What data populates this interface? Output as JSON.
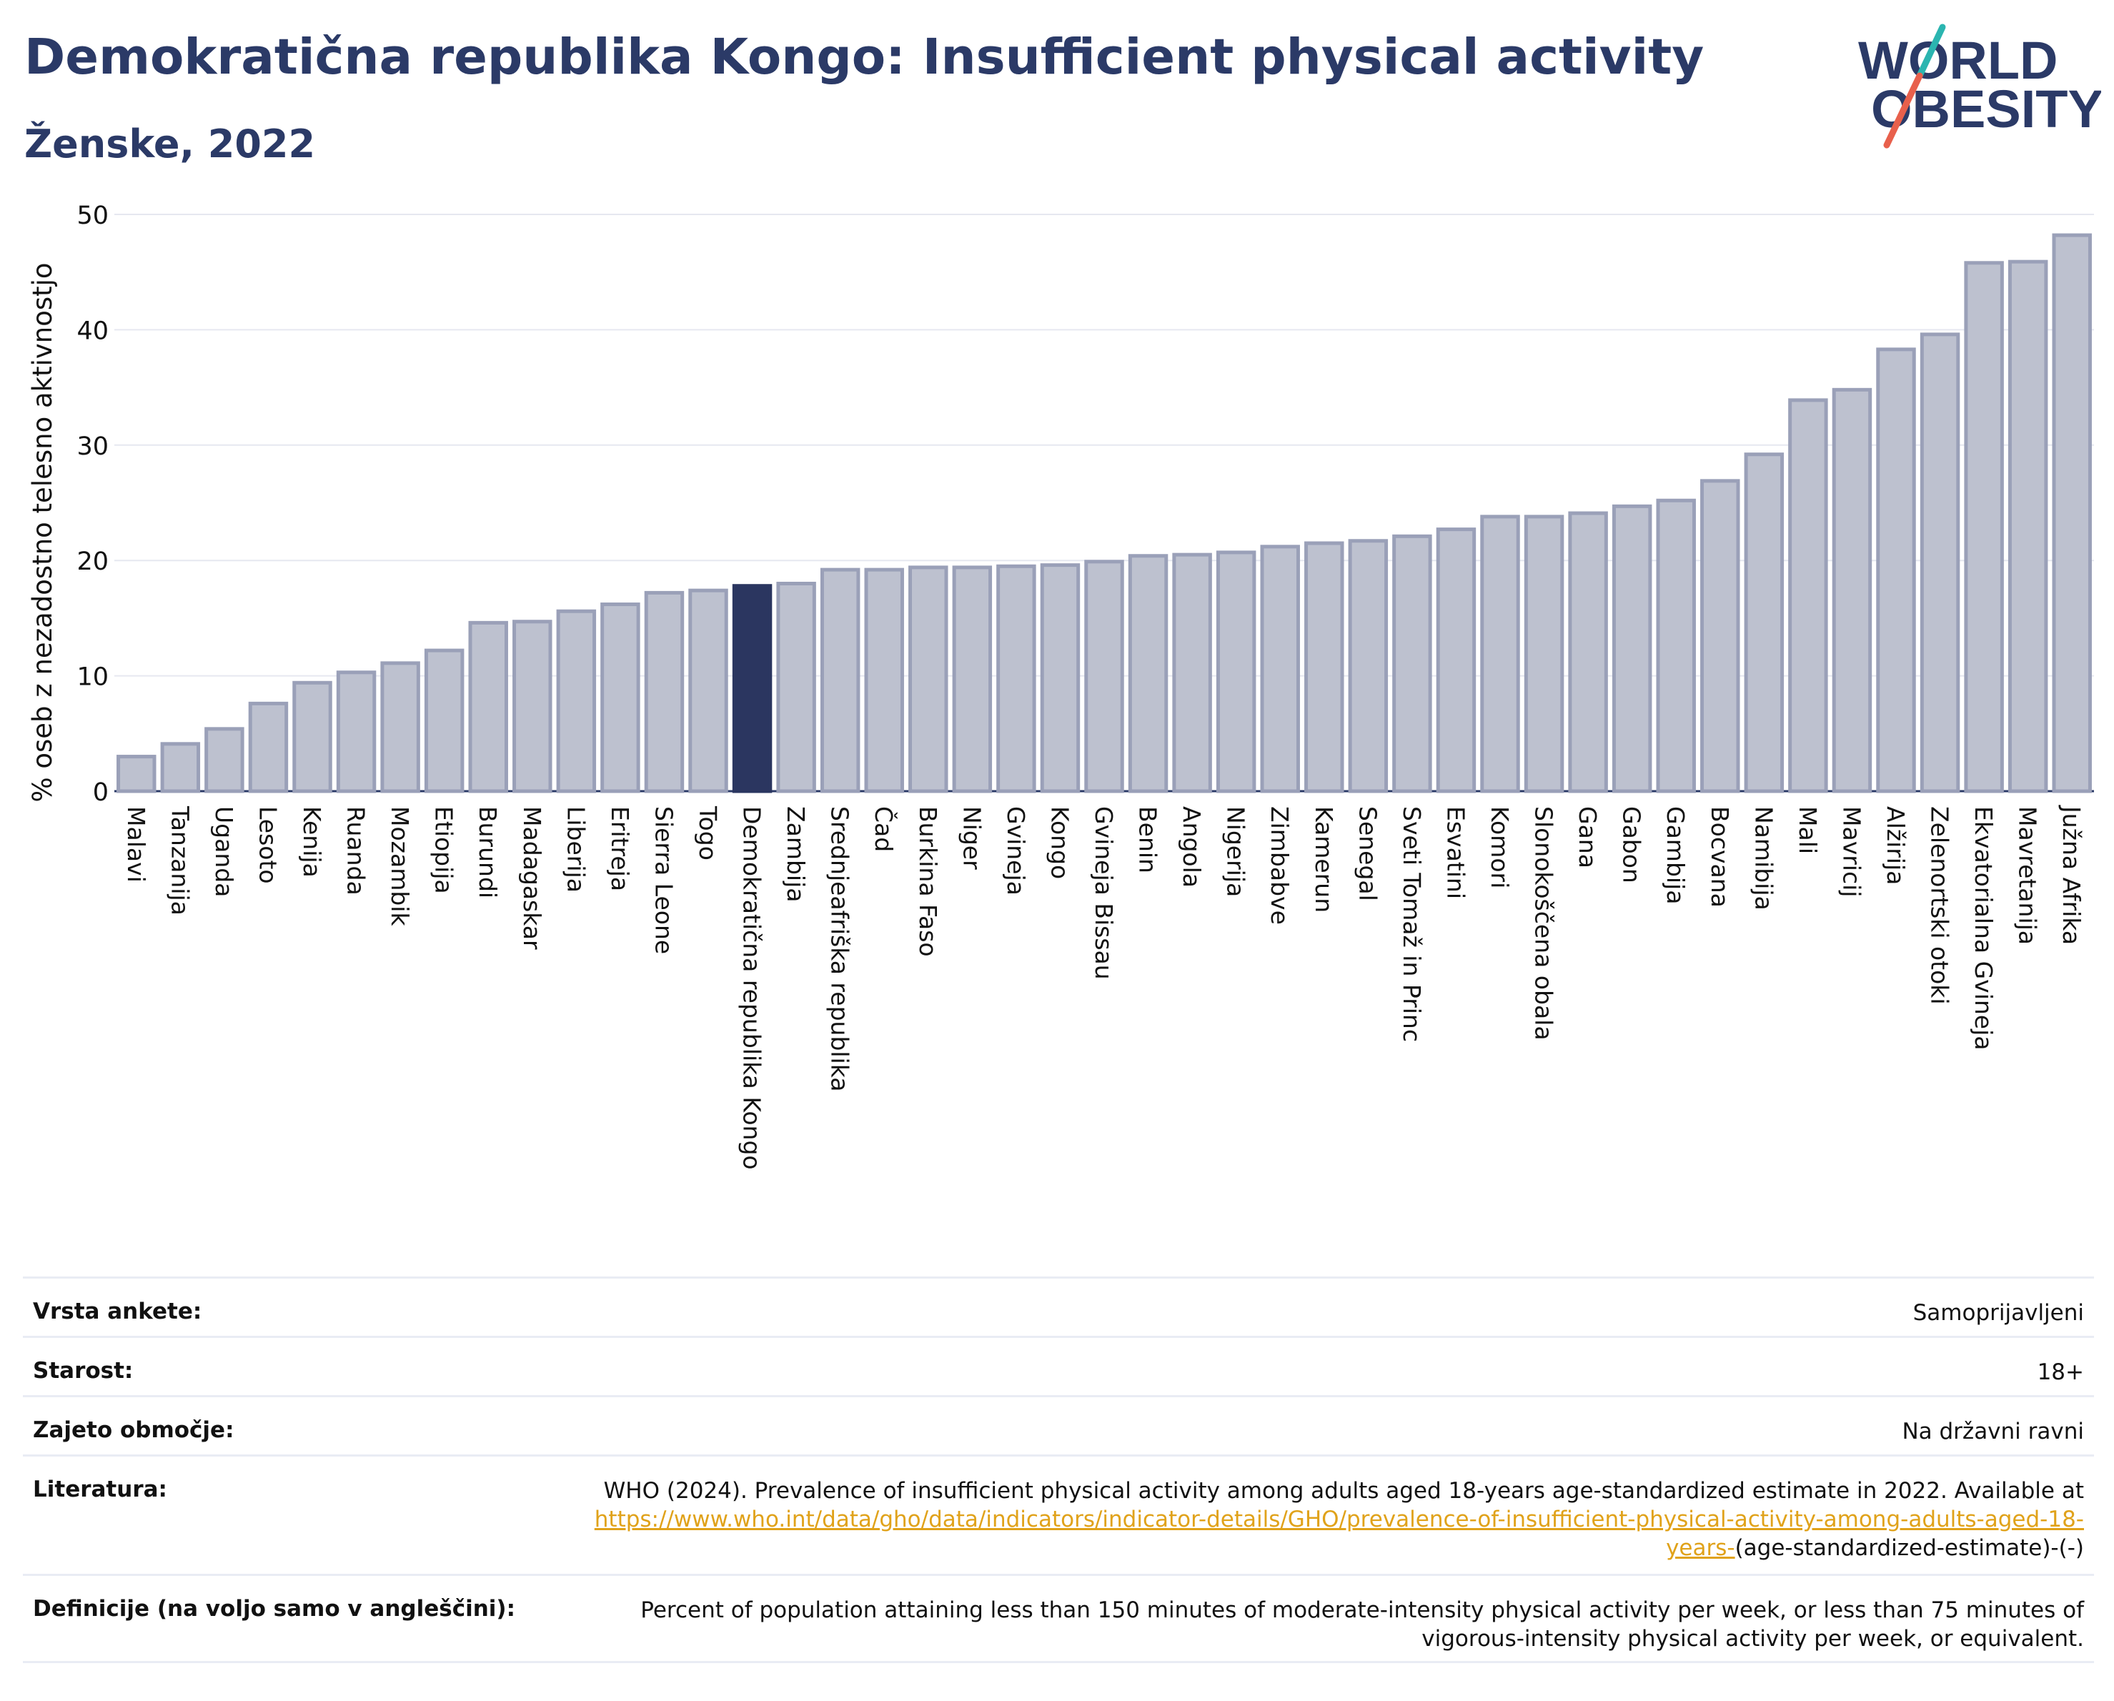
{
  "header": {
    "title": "Demokratična republika Kongo: Insufficient physical activity",
    "subtitle": "Ženske, 2022"
  },
  "logo": {
    "line1": "WORLD",
    "line2": "OBESITY"
  },
  "colors": {
    "highlight": "#2b3660",
    "bar_fill": "#bdc1cf",
    "bar_stroke": "#9aa0b8",
    "title": "#2b3a67",
    "grid": "#e6e8f0",
    "link": "#e0a21a"
  },
  "chart_data": {
    "type": "bar",
    "title": "Demokratična republika Kongo: Insufficient physical activity",
    "subtitle": "Ženske, 2022",
    "ylabel": "% oseb z nezadostno telesno aktivnostjo",
    "ylim": [
      0,
      50
    ],
    "yticks": [
      0,
      10,
      20,
      30,
      40,
      50
    ],
    "grid": true,
    "highlight": "Demokratična republika Kongo",
    "categories": [
      "Malavi",
      "Tanzanija",
      "Uganda",
      "Lesoto",
      "Kenija",
      "Ruanda",
      "Mozambik",
      "Etiopija",
      "Burundi",
      "Madagaskar",
      "Liberija",
      "Eritreja",
      "Sierra Leone",
      "Togo",
      "Demokratična republika Kongo",
      "Zambija",
      "Srednjeafriška republika",
      "Čad",
      "Burkina Faso",
      "Niger",
      "Gvineja",
      "Kongo",
      "Gvineja Bissau",
      "Benin",
      "Angola",
      "Nigerija",
      "Zimbabve",
      "Kamerun",
      "Senegal",
      "Sveti Tomaž in Princ",
      "Esvatini",
      "Komori",
      "Slonokoščena obala",
      "Gana",
      "Gabon",
      "Gambija",
      "Bocvana",
      "Namibija",
      "Mali",
      "Mavricij",
      "Alžirija",
      "Zelenortski otoki",
      "Ekvatorialna Gvineja",
      "Mavretanija",
      "Južna Afrika"
    ],
    "values": [
      3.0,
      4.1,
      5.4,
      7.6,
      9.4,
      10.3,
      11.1,
      12.2,
      14.6,
      14.7,
      15.6,
      16.2,
      17.2,
      17.4,
      17.8,
      18.0,
      19.2,
      19.2,
      19.4,
      19.4,
      19.5,
      19.6,
      19.9,
      20.4,
      20.5,
      20.7,
      21.2,
      21.5,
      21.7,
      22.1,
      22.7,
      23.8,
      23.8,
      24.1,
      24.7,
      25.2,
      26.9,
      29.2,
      33.9,
      34.8,
      38.3,
      39.6,
      45.8,
      45.9,
      48.2
    ]
  },
  "meta": {
    "rows": [
      {
        "label": "Vrsta ankete:",
        "value": "Samoprijavljeni"
      },
      {
        "label": "Starost:",
        "value": "18+"
      },
      {
        "label": "Zajeto območje:",
        "value": "Na državni ravni"
      }
    ],
    "literature": {
      "label": "Literatura:",
      "text": "WHO (2024). Prevalence of insufficient physical activity among adults aged 18-years age-standardized estimate in 2022. Available at",
      "link": "https://www.who.int/data/gho/data/indicators/indicator-details/GHO/prevalence-of-insufficient-physical-activity-among-adults-aged-18-years-",
      "suffix": "(age-standardized-estimate)-(-)"
    },
    "definition": {
      "label": "Definicije (na voljo samo v angleščini):",
      "value": "Percent of population attaining less than 150 minutes of moderate-intensity physical activity per week, or less than 75 minutes of vigorous-intensity physical activity per week, or equivalent."
    }
  }
}
